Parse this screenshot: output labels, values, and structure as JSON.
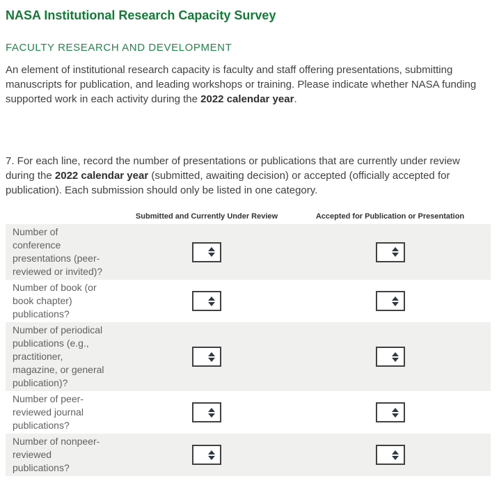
{
  "page": {
    "title": "NASA Institutional Research Capacity Survey",
    "section_heading": "FACULTY RESEARCH AND DEVELOPMENT",
    "intro": {
      "before_bold": "An element of institutional research capacity is faculty and staff offering presentations, submitting manuscripts for publication, and leading workshops or training. Please indicate whether NASA funding supported work in each activity during the ",
      "bold": "2022 calendar year",
      "after_bold": "."
    },
    "question": {
      "before_bold": "7. For each line, record the number of presentations or publications that are currently under review during the ",
      "bold": "2022 calendar year",
      "after_bold": " (submitted, awaiting decision) or accepted (officially accepted for publication). Each submission should only be listed in one category."
    }
  },
  "table": {
    "columns": [
      "Submitted and Currently Under Review",
      "Accepted for Publication or Presentation"
    ],
    "rows": [
      {
        "label": "Number of conference presentations (peer-reviewed or invited)?",
        "submitted_value": "",
        "accepted_value": ""
      },
      {
        "label": "Number of book (or book chapter) publications?",
        "submitted_value": "",
        "accepted_value": ""
      },
      {
        "label": "Number of periodical publications (e.g., practitioner, magazine, or general publication)?",
        "submitted_value": "",
        "accepted_value": ""
      },
      {
        "label": "Number of peer-reviewed journal publications?",
        "submitted_value": "",
        "accepted_value": ""
      },
      {
        "label": "Number of nonpeer-reviewed publications?",
        "submitted_value": "",
        "accepted_value": ""
      }
    ]
  },
  "icons": {
    "spinner_up": "spinner-up-icon",
    "spinner_down": "spinner-down-icon"
  },
  "colors": {
    "title_green": "#147b37",
    "heading_green": "#1e8a46",
    "row_stripe": "#f0f0ee",
    "body_text": "#404040",
    "label_text": "#616161",
    "spinner_border": "#414141",
    "spinner_arrow": "#2d3a45"
  }
}
